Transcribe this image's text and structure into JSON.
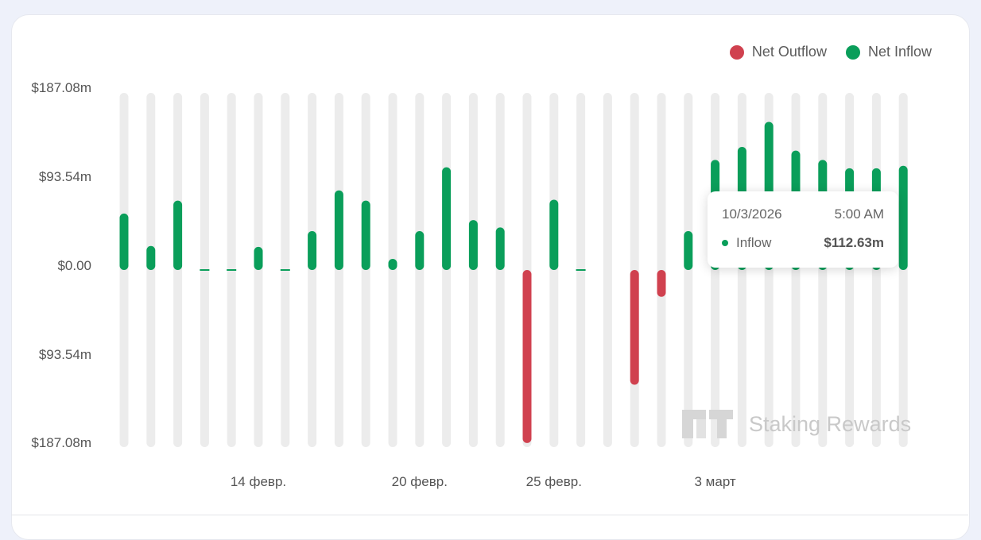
{
  "legend": {
    "outflow_label": "Net Outflow",
    "inflow_label": "Net Inflow"
  },
  "colors": {
    "inflow": "#0a9e5a",
    "outflow": "#d0414f",
    "track": "#ececec"
  },
  "tooltip": {
    "date": "10/3/2026",
    "time": "5:00 AM",
    "series": "Inflow",
    "value": "$112.63m"
  },
  "watermark": {
    "text": "Staking Rewards"
  },
  "chart_data": {
    "type": "bar",
    "y_tick_labels": [
      "$187.08m",
      "$93.54m",
      "$0.00",
      "$93.54m",
      "$187.08m"
    ],
    "ylim": [
      -187.08,
      187.08
    ],
    "x_tick_labels": [
      "14 февр.",
      "20 февр.",
      "25 февр.",
      "3 март"
    ],
    "x_tick_index": [
      5,
      11,
      16,
      22
    ],
    "values": [
      61,
      26,
      75,
      1,
      1,
      25,
      1,
      42,
      86,
      75,
      12,
      42,
      111,
      54,
      46,
      -187,
      76,
      1,
      0,
      -124,
      -29,
      42,
      119,
      133,
      160,
      129,
      119,
      110,
      110,
      112.63
    ]
  }
}
